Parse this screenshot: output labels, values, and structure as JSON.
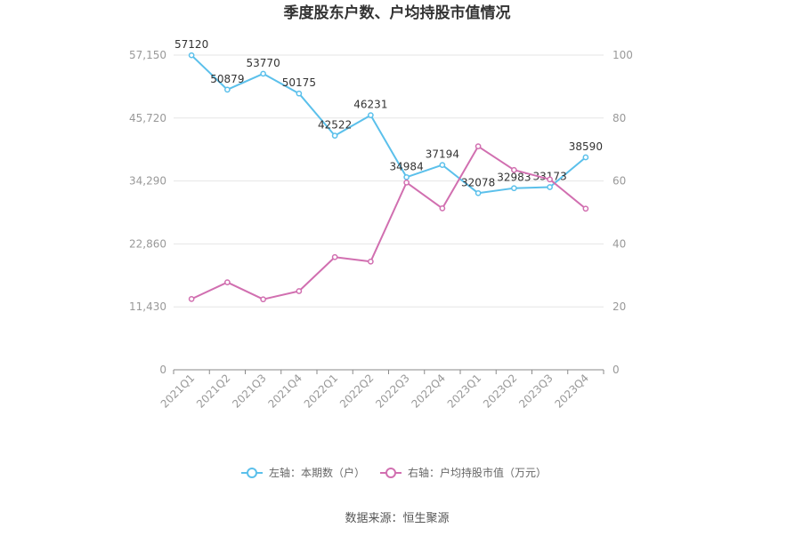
{
  "chart_data": {
    "type": "line",
    "title": "季度股东户数、户均持股市值情况",
    "categories": [
      "2021Q1",
      "2021Q2",
      "2021Q3",
      "2021Q4",
      "2022Q1",
      "2022Q2",
      "2022Q3",
      "2022Q4",
      "2023Q1",
      "2023Q2",
      "2023Q3",
      "2023Q4"
    ],
    "left_axis": {
      "ylim": [
        0,
        57150
      ],
      "ticks": [
        "0",
        "11,430",
        "22,860",
        "34,290",
        "45,720",
        "57,150"
      ]
    },
    "right_axis": {
      "ylim": [
        0,
        100
      ],
      "ticks": [
        "0",
        "20",
        "40",
        "60",
        "80",
        "100"
      ]
    },
    "series": [
      {
        "name": "左轴：本期数（户）",
        "axis": "left",
        "color": "#5bc0eb",
        "values": [
          57120,
          50879,
          53770,
          50175,
          42522,
          46231,
          34984,
          37194,
          32078,
          32983,
          33173,
          38590
        ],
        "labels": [
          "57120",
          "50879",
          "53770",
          "50175",
          "42522",
          "46231",
          "34984",
          "37194",
          "32078",
          "32983",
          "33173",
          "38590"
        ]
      },
      {
        "name": "右轴：户均持股市值（万元）",
        "axis": "right",
        "color": "#d16fb0",
        "values": [
          22.5,
          27.8,
          22.4,
          25.0,
          35.8,
          34.4,
          59.5,
          51.3,
          71.0,
          63.5,
          60.5,
          51.2
        ]
      }
    ],
    "legend_position": "bottom",
    "grid": true,
    "source": "数据来源：恒生聚源"
  }
}
